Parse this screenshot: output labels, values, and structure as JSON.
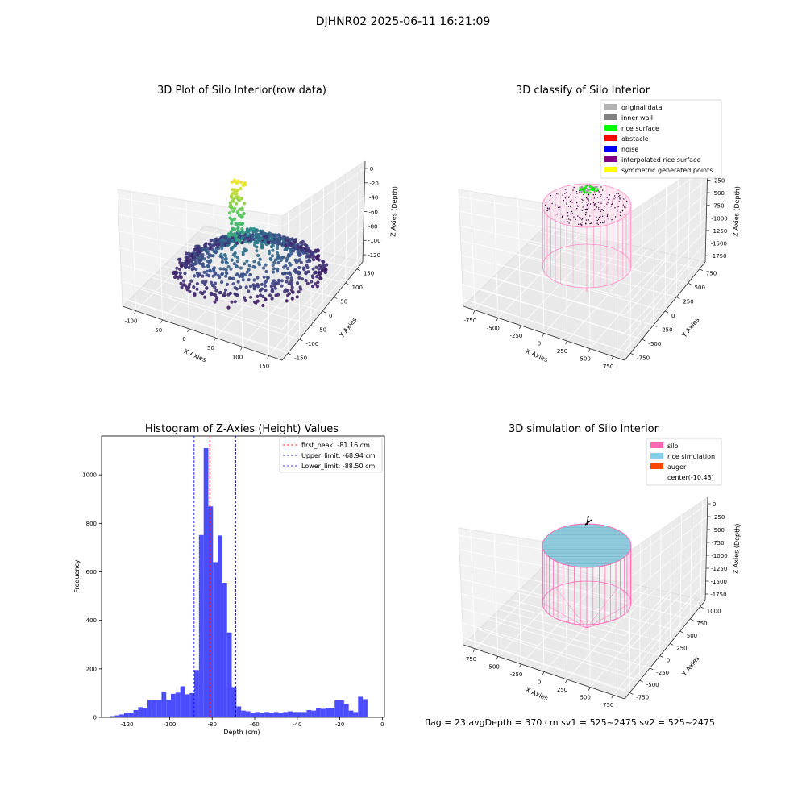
{
  "suptitle": "DJHNR02 2025-06-11 16:21:09",
  "chart_data": [
    {
      "type": "scatter",
      "title": "3D Plot of Silo Interior(row data)",
      "xlabel": "X Axies",
      "ylabel": "Y Axies",
      "zlabel": "Z Axies (Depth)",
      "x_ticks": [
        "-100",
        "-50",
        "0",
        "50",
        "100",
        "150"
      ],
      "y_ticks": [
        "-150",
        "-100",
        "-50",
        "0",
        "50",
        "100",
        "150"
      ],
      "z_ticks": [
        "0",
        "-20",
        "-40",
        "-60",
        "-80",
        "-100",
        "-120"
      ],
      "xlim": [
        -150,
        180
      ],
      "ylim": [
        -170,
        170
      ],
      "zlim": [
        -135,
        5
      ],
      "colormap": "viridis",
      "grid": true
    },
    {
      "type": "scatter",
      "title": "3D classify of Silo Interior",
      "xlabel": "X Axies",
      "ylabel": "Y Axies",
      "zlabel": "Z Axies (Depth)",
      "x_ticks": [
        "-750",
        "-500",
        "-250",
        "0",
        "250",
        "500",
        "750"
      ],
      "y_ticks": [
        "-750",
        "-500",
        "-250",
        "0",
        "250",
        "500",
        "750"
      ],
      "z_ticks": [
        "0",
        "-250",
        "-500",
        "-750",
        "-1000",
        "-1250",
        "-1500",
        "-1750"
      ],
      "legend": [
        {
          "label": "original data",
          "color": "#b3b3b3"
        },
        {
          "label": "inner wall",
          "color": "#808080"
        },
        {
          "label": "rice surface",
          "color": "#00ff00"
        },
        {
          "label": "obstacle",
          "color": "#ff0000"
        },
        {
          "label": "noise",
          "color": "#0000ff"
        },
        {
          "label": "interpolated rice surface",
          "color": "#800080"
        },
        {
          "label": "symmetric generated points",
          "color": "#ffff00"
        }
      ],
      "legend_loc": "upper right",
      "grid": true
    },
    {
      "type": "bar",
      "title": "Histogram of Z-Axies (Height) Values",
      "xlabel": "Depth (cm)",
      "ylabel": "Frequency",
      "xlim": [
        -132,
        1
      ],
      "ylim": [
        0,
        1160
      ],
      "x_ticks": [
        -120,
        -100,
        -80,
        -60,
        -40,
        -20,
        0
      ],
      "y_ticks": [
        0,
        200,
        400,
        600,
        800,
        1000
      ],
      "bar_color": "#4c4cff",
      "bins": [
        {
          "x0": -128.0,
          "x1": -125.8,
          "value": 5
        },
        {
          "x0": -125.8,
          "x1": -123.6,
          "value": 8
        },
        {
          "x0": -123.6,
          "x1": -121.4,
          "value": 12
        },
        {
          "x0": -121.4,
          "x1": -119.2,
          "value": 18
        },
        {
          "x0": -119.2,
          "x1": -117.0,
          "value": 20
        },
        {
          "x0": -117.0,
          "x1": -114.8,
          "value": 30
        },
        {
          "x0": -114.8,
          "x1": -112.6,
          "value": 42
        },
        {
          "x0": -112.6,
          "x1": -110.4,
          "value": 40
        },
        {
          "x0": -110.4,
          "x1": -108.2,
          "value": 72
        },
        {
          "x0": -108.2,
          "x1": -106.0,
          "value": 72
        },
        {
          "x0": -106.0,
          "x1": -103.8,
          "value": 72
        },
        {
          "x0": -103.8,
          "x1": -101.6,
          "value": 103
        },
        {
          "x0": -101.6,
          "x1": -99.4,
          "value": 72
        },
        {
          "x0": -99.4,
          "x1": -97.2,
          "value": 97
        },
        {
          "x0": -97.2,
          "x1": -95.0,
          "value": 102
        },
        {
          "x0": -95.0,
          "x1": -92.8,
          "value": 128
        },
        {
          "x0": -92.8,
          "x1": -90.6,
          "value": 95
        },
        {
          "x0": -90.6,
          "x1": -88.4,
          "value": 100
        },
        {
          "x0": -88.4,
          "x1": -86.2,
          "value": 195
        },
        {
          "x0": -86.2,
          "x1": -84.0,
          "value": 752
        },
        {
          "x0": -84.0,
          "x1": -81.8,
          "value": 1110
        },
        {
          "x0": -81.8,
          "x1": -79.6,
          "value": 870
        },
        {
          "x0": -79.6,
          "x1": -77.4,
          "value": 640
        },
        {
          "x0": -77.4,
          "x1": -75.2,
          "value": 750
        },
        {
          "x0": -75.2,
          "x1": -73.0,
          "value": 555
        },
        {
          "x0": -73.0,
          "x1": -70.8,
          "value": 350
        },
        {
          "x0": -70.8,
          "x1": -68.6,
          "value": 125
        },
        {
          "x0": -68.6,
          "x1": -66.4,
          "value": 45
        },
        {
          "x0": -66.4,
          "x1": -64.2,
          "value": 28
        },
        {
          "x0": -64.2,
          "x1": -62.0,
          "value": 25
        },
        {
          "x0": -62.0,
          "x1": -59.8,
          "value": 18
        },
        {
          "x0": -59.8,
          "x1": -57.6,
          "value": 22
        },
        {
          "x0": -57.6,
          "x1": -55.4,
          "value": 18
        },
        {
          "x0": -55.4,
          "x1": -53.2,
          "value": 22
        },
        {
          "x0": -53.2,
          "x1": -51.0,
          "value": 18
        },
        {
          "x0": -51.0,
          "x1": -48.8,
          "value": 22
        },
        {
          "x0": -48.8,
          "x1": -46.6,
          "value": 20
        },
        {
          "x0": -46.6,
          "x1": -44.4,
          "value": 22
        },
        {
          "x0": -44.4,
          "x1": -42.2,
          "value": 25
        },
        {
          "x0": -42.2,
          "x1": -40.0,
          "value": 22
        },
        {
          "x0": -40.0,
          "x1": -37.8,
          "value": 22
        },
        {
          "x0": -37.8,
          "x1": -35.6,
          "value": 22
        },
        {
          "x0": -35.6,
          "x1": -33.4,
          "value": 30
        },
        {
          "x0": -33.4,
          "x1": -31.2,
          "value": 28
        },
        {
          "x0": -31.2,
          "x1": -29.0,
          "value": 38
        },
        {
          "x0": -29.0,
          "x1": -26.8,
          "value": 35
        },
        {
          "x0": -26.8,
          "x1": -24.6,
          "value": 40
        },
        {
          "x0": -24.6,
          "x1": -22.4,
          "value": 40
        },
        {
          "x0": -22.4,
          "x1": -20.2,
          "value": 70
        },
        {
          "x0": -20.2,
          "x1": -18.0,
          "value": 70
        },
        {
          "x0": -18.0,
          "x1": -15.8,
          "value": 55
        },
        {
          "x0": -15.8,
          "x1": -13.6,
          "value": 28
        },
        {
          "x0": -13.6,
          "x1": -11.4,
          "value": 22
        },
        {
          "x0": -11.4,
          "x1": -9.2,
          "value": 85
        },
        {
          "x0": -9.2,
          "x1": -7.0,
          "value": 75
        }
      ],
      "vlines": [
        {
          "x": -81.16,
          "label": "first_peak: -81.16 cm",
          "color": "#ff0000"
        },
        {
          "x": -68.94,
          "label": "Upper_limit: -68.94 cm",
          "color": "#00008b"
        },
        {
          "x": -88.5,
          "label": "Lower_limit: -88.50 cm",
          "color": "#0000ff"
        }
      ],
      "legend_loc": "upper right"
    },
    {
      "type": "scatter",
      "title": "3D simulation of Silo Interior",
      "xlabel": "X Axies",
      "ylabel": "Y Axies",
      "zlabel": "Z Axies (Depth)",
      "x_ticks": [
        "-750",
        "-500",
        "-250",
        "0",
        "250",
        "500",
        "750"
      ],
      "y_ticks": [
        "-750",
        "-500",
        "-250",
        "0",
        "250",
        "500",
        "750",
        "1000"
      ],
      "z_ticks": [
        "0",
        "-250",
        "-500",
        "-750",
        "-1000",
        "-1250",
        "-1500",
        "-1750"
      ],
      "legend": [
        {
          "label": "silo",
          "color": "#ff69b4"
        },
        {
          "label": "rice simulation",
          "color": "#87ceeb"
        },
        {
          "label": "auger",
          "color": "#ff4500"
        },
        {
          "label": "center(-10,43)",
          "color": ""
        }
      ],
      "legend_loc": "upper right",
      "grid": true
    }
  ],
  "footer": "flag = 23   avgDepth = 370 cm   sv1 = 525~2475  sv2 = 525~2475"
}
